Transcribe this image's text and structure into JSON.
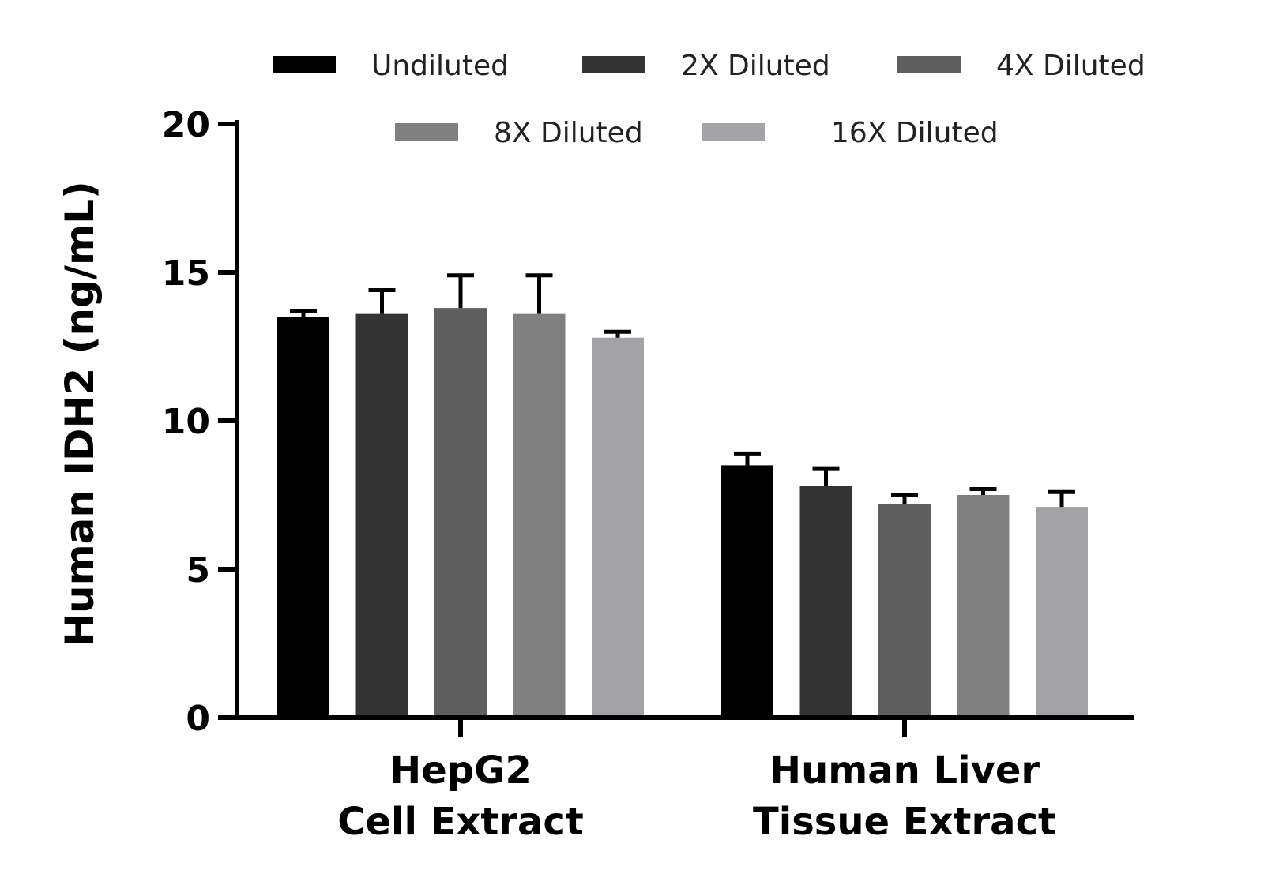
{
  "chart_data": {
    "type": "bar",
    "ylabel": "Human IDH2 (ng/mL)",
    "xlabel": "",
    "ylim": [
      0,
      20
    ],
    "yticks": [
      0,
      5,
      10,
      15,
      20
    ],
    "categories": [
      [
        "HepG2",
        "Cell Extract"
      ],
      [
        "Human Liver",
        "Tissue Extract"
      ]
    ],
    "series": [
      {
        "name": "Undiluted",
        "color": "#000000",
        "values": [
          13.5,
          8.5
        ],
        "errors": [
          0.2,
          0.4
        ]
      },
      {
        "name": "2X Diluted",
        "color": "#333333",
        "values": [
          13.6,
          7.8
        ],
        "errors": [
          0.8,
          0.6
        ]
      },
      {
        "name": "4X Diluted",
        "color": "#5f5f5f",
        "values": [
          13.8,
          7.2
        ],
        "errors": [
          1.1,
          0.3
        ]
      },
      {
        "name": "8X Diluted",
        "color": "#808080",
        "values": [
          13.6,
          7.5
        ],
        "errors": [
          1.3,
          0.2
        ]
      },
      {
        "name": "16X Diluted",
        "color": "#a3a3a7",
        "values": [
          12.8,
          7.1
        ],
        "errors": [
          0.2,
          0.5
        ]
      }
    ],
    "grid": false,
    "legend_position": "top"
  }
}
